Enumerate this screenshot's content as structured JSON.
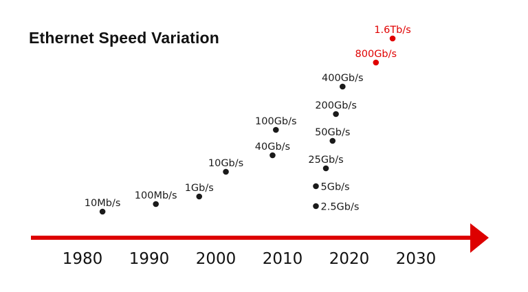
{
  "chart_data": {
    "type": "scatter",
    "title": "Ethernet Speed Variation",
    "xlabel": "",
    "ylabel": "",
    "x_ticks": [
      "1980",
      "1990",
      "2000",
      "2010",
      "2020",
      "2030"
    ],
    "xlim": [
      1976,
      2038
    ],
    "grid": false,
    "colors": {
      "standard": "#1a1a1a",
      "future": "#e00000",
      "axis": "#dd0000"
    },
    "points": [
      {
        "label": "10Mb/s",
        "year": 1983,
        "future": false
      },
      {
        "label": "100Mb/s",
        "year": 1991,
        "future": false
      },
      {
        "label": "1Gb/s",
        "year": 1997.5,
        "future": false
      },
      {
        "label": "10Gb/s",
        "year": 2001.5,
        "future": false
      },
      {
        "label": "40Gb/s",
        "year": 2008.5,
        "future": false
      },
      {
        "label": "100Gb/s",
        "year": 2009,
        "future": false
      },
      {
        "label": "2.5Gb/s",
        "year": 2015,
        "future": false
      },
      {
        "label": "5Gb/s",
        "year": 2015,
        "future": false
      },
      {
        "label": "25Gb/s",
        "year": 2016.5,
        "future": false
      },
      {
        "label": "50Gb/s",
        "year": 2017.5,
        "future": false
      },
      {
        "label": "200Gb/s",
        "year": 2018,
        "future": false
      },
      {
        "label": "400Gb/s",
        "year": 2019,
        "future": false
      },
      {
        "label": "800Gb/s",
        "year": 2024,
        "future": true
      },
      {
        "label": "1.6Tb/s",
        "year": 2026.5,
        "future": true
      }
    ]
  }
}
